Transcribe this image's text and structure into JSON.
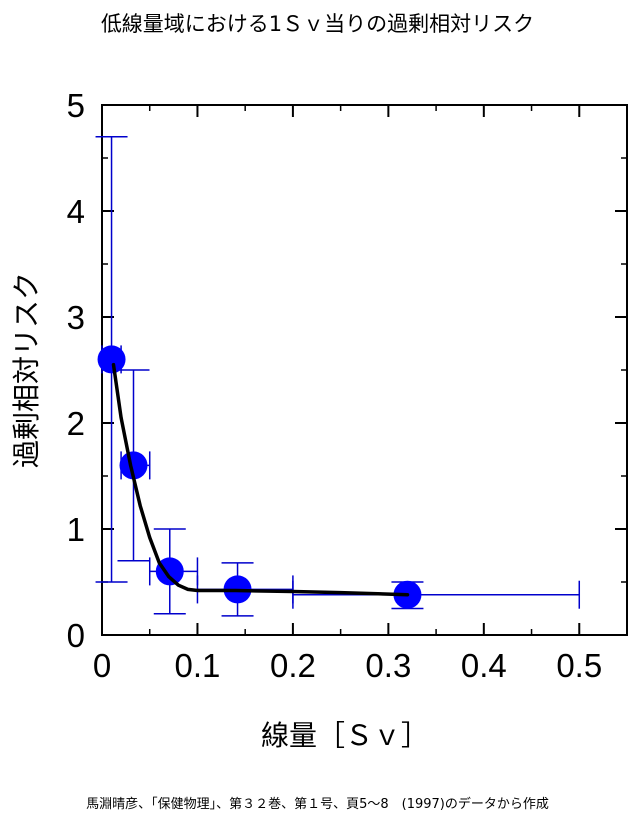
{
  "chart_data": {
    "type": "scatter",
    "title": "低線量域における1Ｓｖ当りの過剰相対リスク",
    "xlabel": "線量［Ｓｖ］",
    "ylabel": "過剰相対リスク",
    "xlim": [
      0,
      0.55
    ],
    "ylim": [
      0,
      5
    ],
    "x_ticks": [
      "0",
      "0.1",
      "0.2",
      "0.3",
      "0.4",
      "0.5"
    ],
    "y_ticks": [
      "0",
      "1",
      "2",
      "3",
      "4",
      "5"
    ],
    "grid": false,
    "colors": {
      "points": "#0000ff",
      "error_bars": "#0000cc",
      "fit_line": "#000000"
    },
    "points": [
      {
        "x": 0.01,
        "y": 2.6,
        "y_low": 0.5,
        "y_high": 4.7,
        "x_low": 0.0,
        "x_high": 0.02
      },
      {
        "x": 0.033,
        "y": 1.6,
        "y_low": 0.7,
        "y_high": 2.5,
        "x_low": 0.02,
        "x_high": 0.05
      },
      {
        "x": 0.071,
        "y": 0.6,
        "y_low": 0.2,
        "y_high": 1.0,
        "x_low": 0.05,
        "x_high": 0.1
      },
      {
        "x": 0.142,
        "y": 0.43,
        "y_low": 0.18,
        "y_high": 0.68,
        "x_low": 0.1,
        "x_high": 0.2
      },
      {
        "x": 0.32,
        "y": 0.38,
        "y_low": 0.25,
        "y_high": 0.5,
        "x_low": 0.2,
        "x_high": 0.5
      }
    ],
    "fit_line": {
      "x": [
        0.012,
        0.02,
        0.03,
        0.04,
        0.05,
        0.06,
        0.07,
        0.08,
        0.09,
        0.1,
        0.14,
        0.2,
        0.25,
        0.32
      ],
      "y": [
        2.55,
        2.05,
        1.6,
        1.22,
        0.92,
        0.68,
        0.55,
        0.47,
        0.43,
        0.42,
        0.42,
        0.41,
        0.4,
        0.38
      ]
    }
  },
  "footer": "馬淵晴彦、「保健物理」、第３２巻、第１号、頁5～8　(1997)のデータから作成"
}
